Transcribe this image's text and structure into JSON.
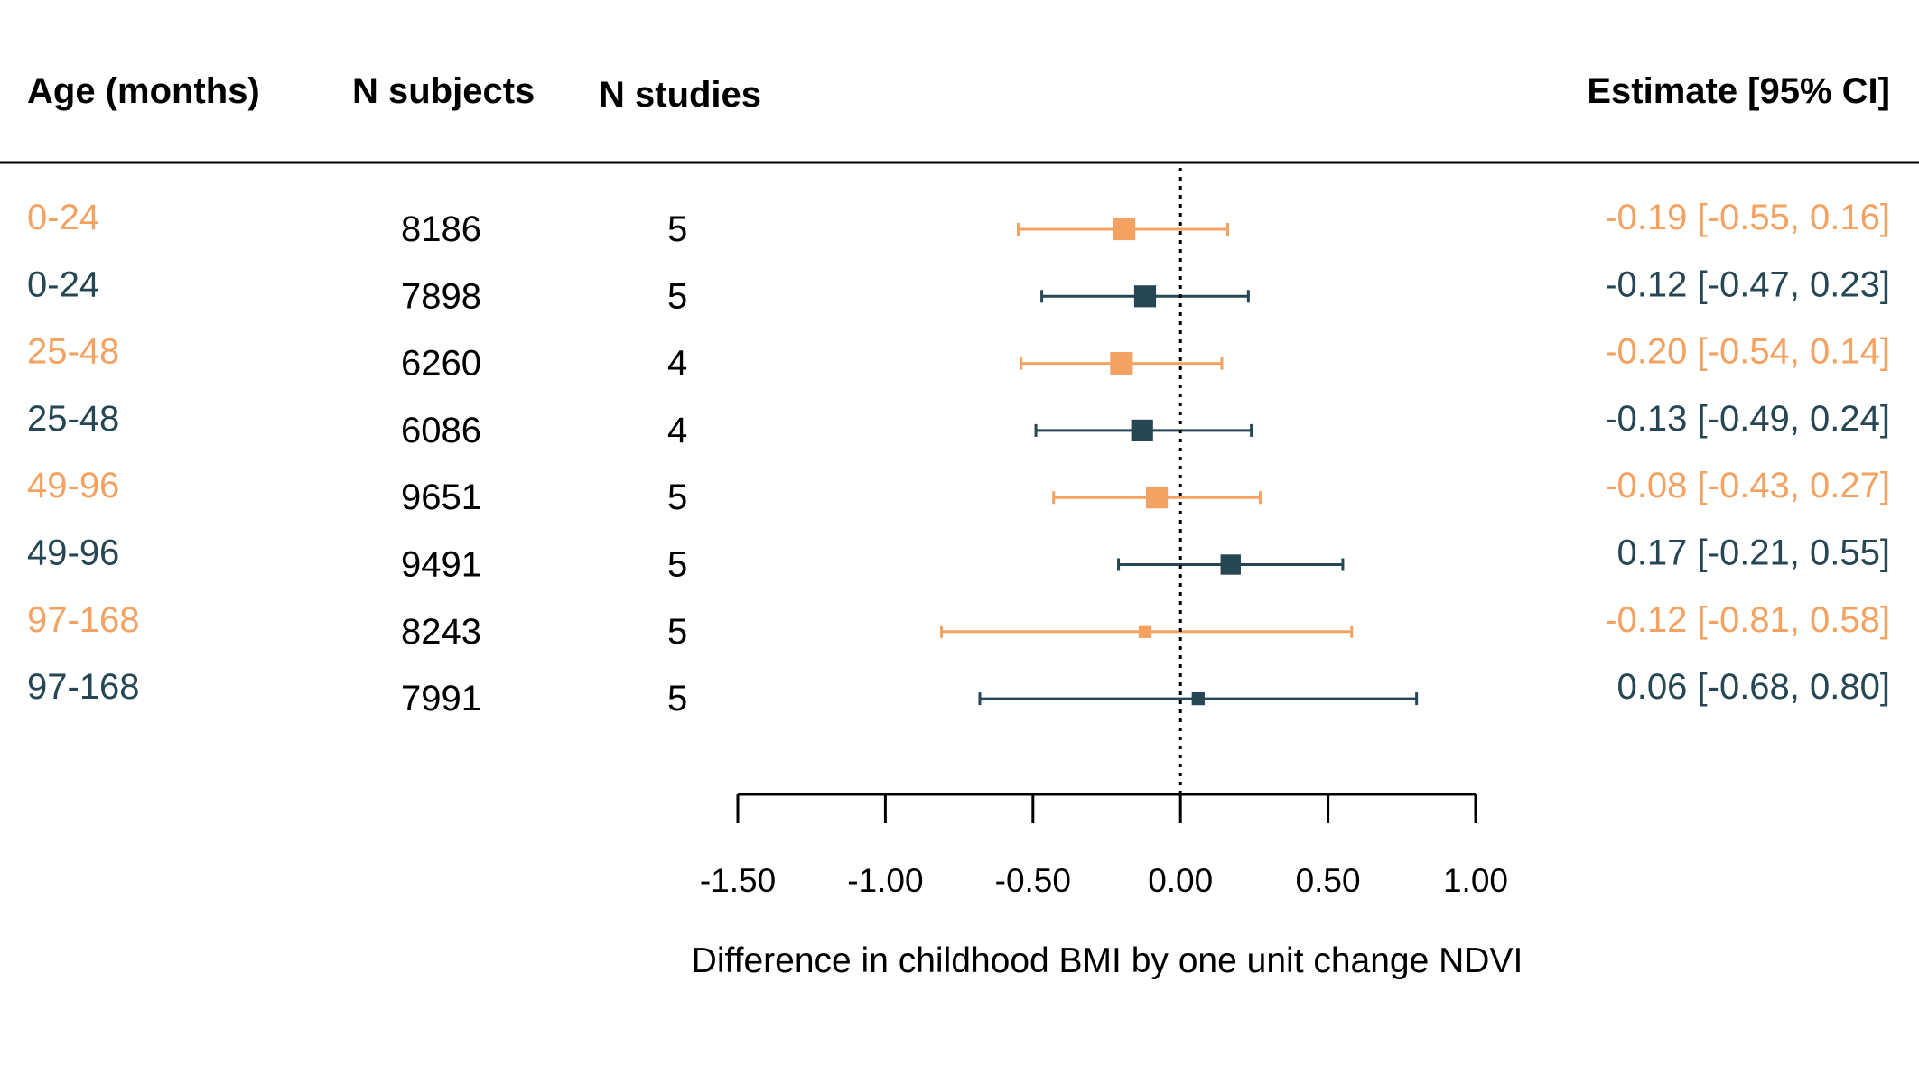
{
  "headers": {
    "age": "Age (months)",
    "n_subjects": "N subjects",
    "n_studies": "N studies",
    "estimate": "Estimate [95% CI]"
  },
  "colors": {
    "orange": "#F4A261",
    "dark": "#264653",
    "text": "#000000"
  },
  "chart_data": {
    "type": "forest",
    "xlabel": "Difference in childhood BMI by one unit change NDVI",
    "xlim": [
      -1.5,
      1.0
    ],
    "xticks": [
      -1.5,
      -1.0,
      -0.5,
      0.0,
      0.5,
      1.0
    ],
    "xtick_labels": [
      "-1.50",
      "-1.00",
      "-0.50",
      "0.00",
      "0.50",
      "1.00"
    ],
    "reference_line": 0,
    "rows": [
      {
        "age": "0-24",
        "n_subjects": "8186",
        "n_studies": "5",
        "estimate": -0.19,
        "lower": -0.55,
        "upper": 0.16,
        "label": "-0.19 [-0.55, 0.16]",
        "color": "orange",
        "weight": 0.9
      },
      {
        "age": "0-24",
        "n_subjects": "7898",
        "n_studies": "5",
        "estimate": -0.12,
        "lower": -0.47,
        "upper": 0.23,
        "label": "-0.12 [-0.47, 0.23]",
        "color": "dark",
        "weight": 0.9
      },
      {
        "age": "25-48",
        "n_subjects": "6260",
        "n_studies": "4",
        "estimate": -0.2,
        "lower": -0.54,
        "upper": 0.14,
        "label": "-0.20 [-0.54, 0.14]",
        "color": "orange",
        "weight": 0.95
      },
      {
        "age": "25-48",
        "n_subjects": "6086",
        "n_studies": "4",
        "estimate": -0.13,
        "lower": -0.49,
        "upper": 0.24,
        "label": "-0.13 [-0.49, 0.24]",
        "color": "dark",
        "weight": 0.9
      },
      {
        "age": "49-96",
        "n_subjects": "9651",
        "n_studies": "5",
        "estimate": -0.08,
        "lower": -0.43,
        "upper": 0.27,
        "label": "-0.08 [-0.43, 0.27]",
        "color": "orange",
        "weight": 0.9
      },
      {
        "age": "49-96",
        "n_subjects": "9491",
        "n_studies": "5",
        "estimate": 0.17,
        "lower": -0.21,
        "upper": 0.55,
        "label": "0.17 [-0.21, 0.55]",
        "color": "dark",
        "weight": 0.8
      },
      {
        "age": "97-168",
        "n_subjects": "8243",
        "n_studies": "5",
        "estimate": -0.12,
        "lower": -0.81,
        "upper": 0.58,
        "label": "-0.12 [-0.81, 0.58]",
        "color": "orange",
        "weight": 0.35
      },
      {
        "age": "97-168",
        "n_subjects": "7991",
        "n_studies": "5",
        "estimate": 0.06,
        "lower": -0.68,
        "upper": 0.8,
        "label": "0.06 [-0.68, 0.80]",
        "color": "dark",
        "weight": 0.35
      }
    ]
  }
}
